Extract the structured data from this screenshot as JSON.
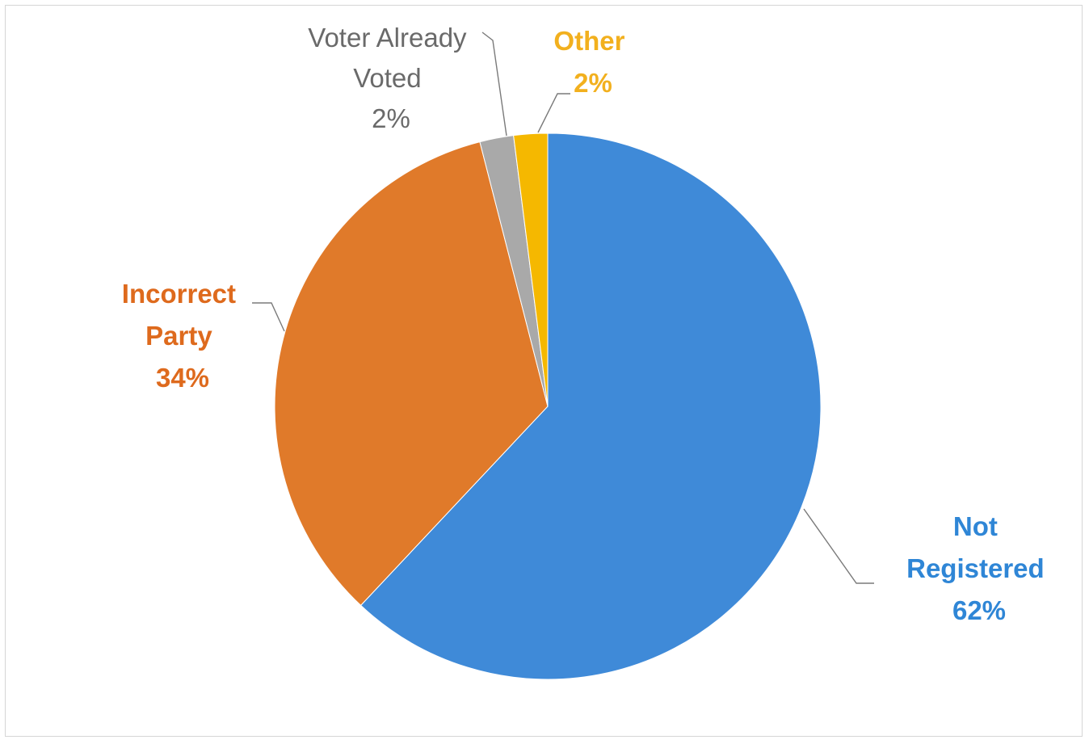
{
  "chart_data": {
    "type": "pie",
    "title": "",
    "slices": [
      {
        "label_lines": [
          "Not",
          "Registered"
        ],
        "value": 62,
        "value_label": "62%",
        "color": "#3f8ad8",
        "label_color": "#2f86d6"
      },
      {
        "label_lines": [
          "Incorrect",
          "Party"
        ],
        "value": 34,
        "value_label": "34%",
        "color": "#e07a2a",
        "label_color": "#de6a1d"
      },
      {
        "label_lines": [
          "Voter Already",
          "Voted"
        ],
        "value": 2,
        "value_label": "2%",
        "color": "#a9a9a9",
        "label_color": "#6a6a6a"
      },
      {
        "label_lines": [
          "Other"
        ],
        "value": 2,
        "value_label": "2%",
        "color": "#f5b800",
        "label_color": "#f2b01e"
      }
    ],
    "legend": "none",
    "data_labels": "outside-with-leader-lines"
  }
}
